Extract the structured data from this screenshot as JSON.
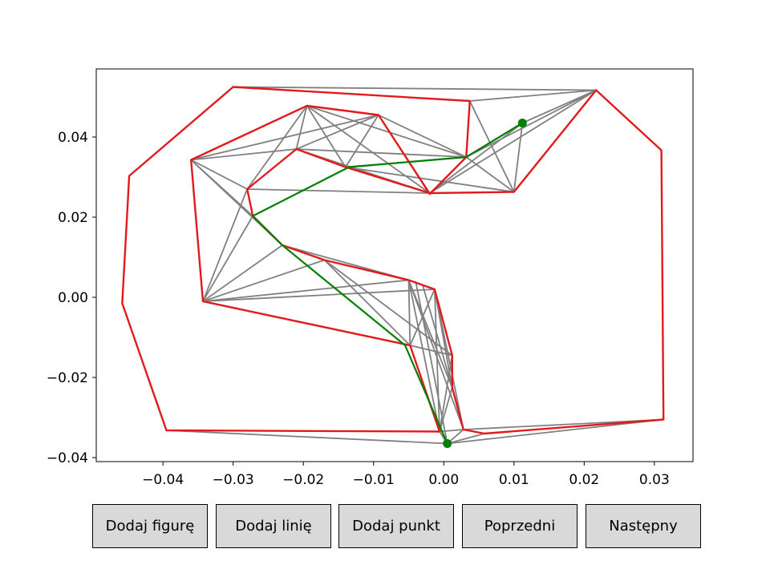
{
  "buttons": {
    "add_figure": "Dodaj figurę",
    "add_line": "Dodaj linię",
    "add_point": "Dodaj punkt",
    "previous": "Poprzedni",
    "next": "Następny"
  },
  "colors": {
    "polygon": "#e31a1c",
    "triangulation": "#808080",
    "path": "#007f00",
    "endpoints": "#007f00",
    "button_bg": "#d9d9d9"
  },
  "chart_data": {
    "type": "line",
    "title": "",
    "xlabel": "",
    "ylabel": "",
    "xlim": [
      -0.0495,
      0.0355
    ],
    "ylim": [
      -0.041,
      0.057
    ],
    "x_ticks": [
      -0.04,
      -0.03,
      -0.02,
      -0.01,
      0.0,
      0.01,
      0.02,
      0.03
    ],
    "x_tick_labels": [
      "−0.04",
      "−0.03",
      "−0.02",
      "−0.01",
      "0.00",
      "0.01",
      "0.02",
      "0.03"
    ],
    "y_ticks": [
      -0.04,
      -0.02,
      0.0,
      0.02,
      0.04
    ],
    "y_tick_labels": [
      "−0.04",
      "−0.02",
      "0.00",
      "0.02",
      "0.04"
    ],
    "grid": false,
    "series": [
      {
        "role": "outer polygon",
        "color": "#e31a1c",
        "closed": true,
        "points": [
          [
            -0.03,
            0.0525
          ],
          [
            0.0037,
            0.049
          ],
          [
            0.0032,
            0.035
          ],
          [
            -0.002,
            0.0258
          ],
          [
            -0.0093,
            0.0455
          ],
          [
            -0.0195,
            0.0478
          ],
          [
            -0.036,
            0.0343
          ],
          [
            -0.0343,
            -0.001
          ],
          [
            -0.0048,
            -0.012
          ],
          [
            -0.0006,
            -0.0335
          ],
          [
            -0.0395,
            -0.0332
          ],
          [
            -0.0458,
            -0.0015
          ],
          [
            -0.0448,
            0.0303
          ]
        ]
      },
      {
        "role": "inner polygon",
        "color": "#e31a1c",
        "closed": true,
        "points": [
          [
            0.0217,
            0.0517
          ],
          [
            0.031,
            0.0367
          ],
          [
            0.0313,
            -0.0305
          ],
          [
            0.0058,
            -0.034
          ],
          [
            0.0028,
            -0.033
          ],
          [
            0.0012,
            -0.0225
          ],
          [
            0.0012,
            -0.0145
          ],
          [
            -0.0013,
            0.002
          ],
          [
            -0.005,
            0.0043
          ],
          [
            -0.017,
            0.0093
          ],
          [
            -0.023,
            0.013
          ],
          [
            -0.0272,
            0.0203
          ],
          [
            -0.028,
            0.027
          ],
          [
            -0.021,
            0.037
          ],
          [
            -0.014,
            0.0325
          ],
          [
            -0.002,
            0.026
          ],
          [
            0.01,
            0.0263
          ]
        ]
      },
      {
        "role": "shortest path",
        "color": "#007f00",
        "closed": false,
        "points": [
          [
            0.0112,
            0.0435
          ],
          [
            0.0032,
            0.035
          ],
          [
            -0.0135,
            0.0325
          ],
          [
            -0.0272,
            0.0203
          ],
          [
            -0.023,
            0.013
          ],
          [
            -0.0055,
            -0.012
          ],
          [
            0.0005,
            -0.0365
          ]
        ]
      }
    ],
    "triangulation_edges": [
      [
        [
          -0.03,
          0.0525
        ],
        [
          0.0217,
          0.0517
        ]
      ],
      [
        [
          0.0037,
          0.049
        ],
        [
          0.0217,
          0.0517
        ]
      ],
      [
        [
          0.0032,
          0.035
        ],
        [
          0.0217,
          0.0517
        ]
      ],
      [
        [
          0.0032,
          0.035
        ],
        [
          0.01,
          0.0263
        ]
      ],
      [
        [
          0.0037,
          0.049
        ],
        [
          0.01,
          0.0263
        ]
      ],
      [
        [
          0.01,
          0.0263
        ],
        [
          0.0217,
          0.0517
        ]
      ],
      [
        [
          0.0112,
          0.0435
        ],
        [
          0.01,
          0.0263
        ]
      ],
      [
        [
          0.0112,
          0.0435
        ],
        [
          0.0217,
          0.0517
        ]
      ],
      [
        [
          -0.002,
          0.026
        ],
        [
          0.0217,
          0.0517
        ]
      ],
      [
        [
          -0.002,
          0.026
        ],
        [
          0.0112,
          0.0435
        ]
      ],
      [
        [
          -0.014,
          0.0325
        ],
        [
          0.01,
          0.0263
        ]
      ],
      [
        [
          -0.0195,
          0.0478
        ],
        [
          0.0032,
          0.035
        ]
      ],
      [
        [
          -0.0195,
          0.0478
        ],
        [
          -0.014,
          0.0325
        ]
      ],
      [
        [
          -0.0195,
          0.0478
        ],
        [
          -0.002,
          0.026
        ]
      ],
      [
        [
          -0.0195,
          0.0478
        ],
        [
          -0.028,
          0.027
        ]
      ],
      [
        [
          -0.0195,
          0.0478
        ],
        [
          -0.021,
          0.037
        ]
      ],
      [
        [
          -0.0093,
          0.0455
        ],
        [
          -0.021,
          0.037
        ]
      ],
      [
        [
          -0.0093,
          0.0455
        ],
        [
          -0.014,
          0.0325
        ]
      ],
      [
        [
          -0.0093,
          0.0455
        ],
        [
          -0.002,
          0.026
        ]
      ],
      [
        [
          -0.0093,
          0.0455
        ],
        [
          0.0032,
          0.035
        ]
      ],
      [
        [
          -0.0093,
          0.0455
        ],
        [
          -0.036,
          0.0343
        ]
      ],
      [
        [
          -0.021,
          0.037
        ],
        [
          0.0032,
          0.035
        ]
      ],
      [
        [
          -0.021,
          0.037
        ],
        [
          -0.002,
          0.026
        ]
      ],
      [
        [
          -0.036,
          0.0343
        ],
        [
          -0.021,
          0.037
        ]
      ],
      [
        [
          -0.036,
          0.0343
        ],
        [
          -0.028,
          0.027
        ]
      ],
      [
        [
          -0.036,
          0.0343
        ],
        [
          -0.0272,
          0.0203
        ]
      ],
      [
        [
          -0.036,
          0.0343
        ],
        [
          -0.023,
          0.013
        ]
      ],
      [
        [
          -0.028,
          0.027
        ],
        [
          -0.002,
          0.026
        ]
      ],
      [
        [
          -0.014,
          0.0325
        ],
        [
          0.0032,
          0.035
        ]
      ],
      [
        [
          -0.0343,
          -0.001
        ],
        [
          -0.028,
          0.027
        ]
      ],
      [
        [
          -0.0343,
          -0.001
        ],
        [
          -0.0272,
          0.0203
        ]
      ],
      [
        [
          -0.0343,
          -0.001
        ],
        [
          -0.023,
          0.013
        ]
      ],
      [
        [
          -0.0343,
          -0.001
        ],
        [
          -0.017,
          0.0093
        ]
      ],
      [
        [
          -0.0343,
          -0.001
        ],
        [
          -0.005,
          0.0043
        ]
      ],
      [
        [
          -0.0343,
          -0.001
        ],
        [
          -0.0013,
          0.002
        ]
      ],
      [
        [
          -0.023,
          0.013
        ],
        [
          -0.005,
          0.0043
        ]
      ],
      [
        [
          -0.017,
          0.0093
        ],
        [
          -0.0048,
          -0.012
        ]
      ],
      [
        [
          -0.017,
          0.0093
        ],
        [
          0.0012,
          -0.0145
        ]
      ],
      [
        [
          -0.0048,
          -0.012
        ],
        [
          -0.005,
          0.0043
        ]
      ],
      [
        [
          -0.0048,
          -0.012
        ],
        [
          -0.0013,
          0.002
        ]
      ],
      [
        [
          -0.0048,
          -0.012
        ],
        [
          0.0012,
          -0.0145
        ]
      ],
      [
        [
          -0.005,
          0.0043
        ],
        [
          0.0012,
          -0.0225
        ]
      ],
      [
        [
          -0.005,
          0.0043
        ],
        [
          0.0028,
          -0.033
        ]
      ],
      [
        [
          -0.005,
          0.0043
        ],
        [
          -0.0006,
          -0.0335
        ]
      ],
      [
        [
          -0.0013,
          0.002
        ],
        [
          -0.0006,
          -0.0335
        ]
      ],
      [
        [
          -0.0013,
          0.002
        ],
        [
          0.0028,
          -0.033
        ]
      ],
      [
        [
          -0.0013,
          0.002
        ],
        [
          0.0012,
          -0.0225
        ]
      ],
      [
        [
          -0.004,
          0.004
        ],
        [
          0.0005,
          -0.0365
        ]
      ],
      [
        [
          -0.003,
          0.003
        ],
        [
          0.0012,
          -0.0225
        ]
      ],
      [
        [
          0.0012,
          -0.0225
        ],
        [
          -0.0006,
          -0.0335
        ]
      ],
      [
        [
          0.0012,
          -0.0145
        ],
        [
          -0.0006,
          -0.0335
        ]
      ],
      [
        [
          -0.0395,
          -0.0332
        ],
        [
          0.0005,
          -0.0365
        ]
      ],
      [
        [
          -0.0006,
          -0.0335
        ],
        [
          0.0005,
          -0.0365
        ]
      ],
      [
        [
          0.0005,
          -0.0365
        ],
        [
          0.0028,
          -0.033
        ]
      ],
      [
        [
          0.0005,
          -0.0365
        ],
        [
          0.0058,
          -0.034
        ]
      ],
      [
        [
          0.0005,
          -0.0365
        ],
        [
          0.0313,
          -0.0305
        ]
      ],
      [
        [
          0.0028,
          -0.033
        ],
        [
          0.0313,
          -0.0305
        ]
      ],
      [
        [
          -0.0006,
          -0.0335
        ],
        [
          0.0028,
          -0.033
        ]
      ]
    ],
    "endpoints": [
      [
        0.0112,
        0.0435
      ],
      [
        0.0005,
        -0.0365
      ]
    ]
  }
}
